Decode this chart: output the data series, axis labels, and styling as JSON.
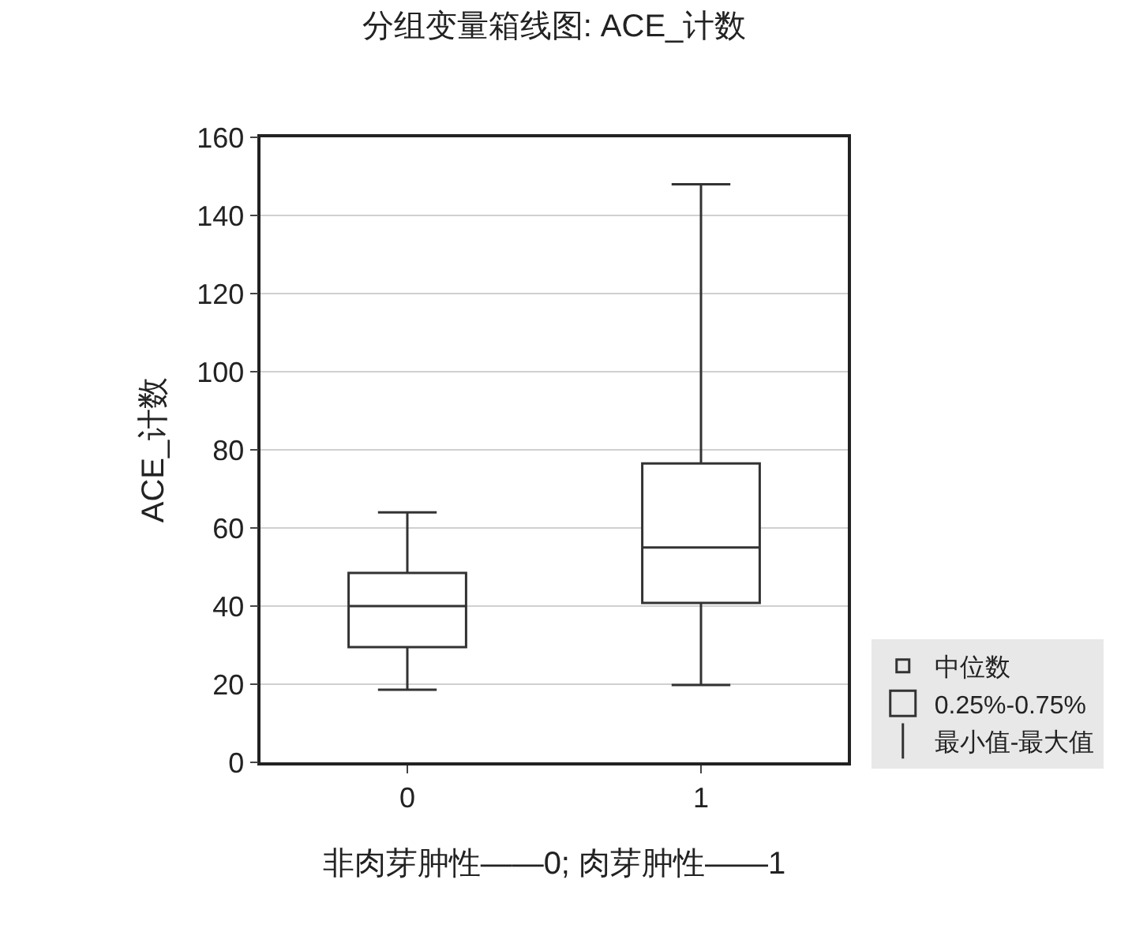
{
  "chart_data": {
    "type": "box",
    "title": "分组变量箱线图: ACE_计数",
    "xlabel": "非肉芽肿性——0; 肉芽肿性——1",
    "ylabel": "ACE_计数",
    "categories": [
      "0",
      "1"
    ],
    "boxes": [
      {
        "low": 18.6,
        "q1": 29.5,
        "median": 40,
        "q3": 48.5,
        "high": 64
      },
      {
        "low": 19.8,
        "q1": 40.8,
        "median": 55,
        "q3": 76.5,
        "high": 148
      }
    ],
    "color": "#333333",
    "ylim": [
      0,
      160
    ],
    "yticks": [
      0,
      20,
      40,
      60,
      80,
      100,
      120,
      140,
      160
    ],
    "grid": "y",
    "marker": "square",
    "annotations": [
      "中位数",
      "0.25%-0.75%",
      "最小值-最大值"
    ]
  }
}
